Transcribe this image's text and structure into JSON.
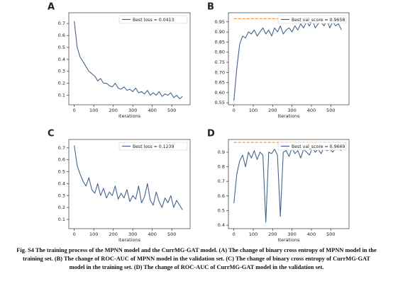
{
  "chart_data": [
    {
      "type": "line",
      "panel_label": "A",
      "xlabel": "Iterations",
      "x": [
        0,
        15,
        30,
        45,
        60,
        75,
        90,
        105,
        120,
        135,
        150,
        165,
        180,
        195,
        210,
        225,
        240,
        255,
        270,
        285,
        300,
        315,
        330,
        345,
        360,
        375,
        390,
        405,
        420,
        435,
        450,
        465,
        480,
        495,
        510,
        525,
        540,
        555
      ],
      "series": [
        {
          "name": "Best loss = 0.0413",
          "color": "#44648f",
          "values": [
            0.72,
            0.5,
            0.42,
            0.38,
            0.34,
            0.3,
            0.28,
            0.26,
            0.22,
            0.24,
            0.2,
            0.2,
            0.18,
            0.17,
            0.2,
            0.16,
            0.15,
            0.17,
            0.14,
            0.15,
            0.13,
            0.16,
            0.12,
            0.13,
            0.11,
            0.14,
            0.1,
            0.12,
            0.1,
            0.13,
            0.09,
            0.11,
            0.1,
            0.12,
            0.08,
            0.1,
            0.07,
            0.09
          ]
        }
      ],
      "xlim": [
        -28,
        594
      ],
      "xticks": [
        0,
        100,
        200,
        300,
        400,
        500
      ],
      "ylim": [
        0.02,
        0.79
      ],
      "yticks": [
        0.1,
        0.2,
        0.3,
        0.4,
        0.5,
        0.6,
        0.7
      ],
      "legend": "upper right"
    },
    {
      "type": "line",
      "panel_label": "B",
      "xlabel": "Iterations",
      "x": [
        0,
        15,
        30,
        45,
        60,
        75,
        90,
        105,
        120,
        135,
        150,
        165,
        180,
        195,
        210,
        225,
        240,
        255,
        270,
        285,
        300,
        315,
        330,
        345,
        360,
        375,
        390,
        405,
        420,
        435,
        450,
        465,
        480,
        495,
        510,
        525,
        540,
        555
      ],
      "series": [
        {
          "name": "Best val_score = 0.9658",
          "color": "#44648f",
          "values": [
            0.56,
            0.72,
            0.84,
            0.88,
            0.87,
            0.9,
            0.89,
            0.91,
            0.88,
            0.9,
            0.92,
            0.89,
            0.91,
            0.88,
            0.92,
            0.9,
            0.93,
            0.89,
            0.91,
            0.92,
            0.9,
            0.93,
            0.91,
            0.94,
            0.92,
            0.95,
            0.93,
            0.96,
            0.92,
            0.94,
            0.95,
            0.93,
            0.96,
            0.92,
            0.95,
            0.93,
            0.94,
            0.91
          ]
        }
      ],
      "hline": 0.9658,
      "hline_color": "#ff7f0e",
      "xlim": [
        -28,
        594
      ],
      "xticks": [
        0,
        100,
        200,
        300,
        400,
        500
      ],
      "ylim": [
        0.54,
        0.995
      ],
      "yticks": [
        0.55,
        {
          "value": 0.6,
          "label": "0.60"
        },
        0.65,
        {
          "value": 0.7,
          "label": "0.70"
        },
        0.75,
        {
          "value": 0.8,
          "label": "0.80"
        },
        0.85,
        {
          "value": 0.9,
          "label": "0.90"
        },
        0.95
      ],
      "legend": "upper right"
    },
    {
      "type": "line",
      "panel_label": "C",
      "xlabel": "Iterations",
      "x": [
        0,
        15,
        30,
        45,
        60,
        75,
        90,
        105,
        120,
        135,
        150,
        165,
        180,
        195,
        210,
        225,
        240,
        255,
        270,
        285,
        300,
        315,
        330,
        345,
        360,
        375,
        390,
        405,
        420,
        435,
        450,
        465,
        480,
        495,
        510,
        525,
        540,
        555
      ],
      "series": [
        {
          "name": "Best loss = 0.1239",
          "color": "#44648f",
          "values": [
            0.72,
            0.55,
            0.48,
            0.42,
            0.38,
            0.45,
            0.35,
            0.32,
            0.4,
            0.3,
            0.36,
            0.28,
            0.33,
            0.3,
            0.38,
            0.27,
            0.32,
            0.28,
            0.35,
            0.25,
            0.3,
            0.27,
            0.38,
            0.24,
            0.29,
            0.4,
            0.26,
            0.22,
            0.33,
            0.25,
            0.2,
            0.28,
            0.24,
            0.3,
            0.2,
            0.26,
            0.22,
            0.18
          ]
        }
      ],
      "xlim": [
        -28,
        594
      ],
      "xticks": [
        0,
        100,
        200,
        300,
        400,
        500
      ],
      "ylim": [
        0.023,
        0.77
      ],
      "yticks": [
        0.1,
        0.2,
        0.3,
        0.4,
        0.5,
        0.6,
        0.7
      ],
      "legend": "upper right"
    },
    {
      "type": "line",
      "panel_label": "D",
      "xlabel": "Iterations",
      "x": [
        0,
        15,
        30,
        45,
        60,
        75,
        90,
        105,
        120,
        135,
        150,
        165,
        180,
        195,
        210,
        225,
        240,
        255,
        270,
        285,
        300,
        315,
        330,
        345,
        360,
        375,
        390,
        405,
        420,
        435,
        450,
        465,
        480,
        495,
        510,
        525,
        540,
        555
      ],
      "series": [
        {
          "name": "Best val_score = 0.9669",
          "color": "#44648f",
          "values": [
            0.55,
            0.75,
            0.84,
            0.88,
            0.8,
            0.9,
            0.86,
            0.91,
            0.85,
            0.9,
            0.88,
            0.42,
            0.9,
            0.89,
            0.92,
            0.88,
            0.46,
            0.9,
            0.91,
            0.87,
            0.93,
            0.89,
            0.91,
            0.86,
            0.92,
            0.9,
            0.88,
            0.93,
            0.9,
            0.92,
            0.89,
            0.93,
            0.91,
            0.92,
            0.9,
            0.93,
            0.92,
            0.91
          ]
        }
      ],
      "hline": 0.9669,
      "hline_color": "#ff7f0e",
      "xlim": [
        -28,
        594
      ],
      "xticks": [
        0,
        100,
        200,
        300,
        400,
        500
      ],
      "ylim": [
        0.376,
        0.987
      ],
      "yticks": [
        0.4,
        0.5,
        0.6,
        0.7,
        0.8,
        0.9
      ],
      "legend": "upper right"
    }
  ],
  "caption": {
    "lines": [
      "Fig. S4    The training process of the MPNN model and the CurrMG-GAT model. (A) The change of binary cross entropy of MPNN model in the",
      "training set. (B) The change of ROC-AUC of MPNN model in the validation set. (C) The change of binary cross entropy of CurrMG-GAT",
      "model in the training set. (D) The change of ROC-AUC of CurrMG-GAT model in the validation set."
    ]
  }
}
